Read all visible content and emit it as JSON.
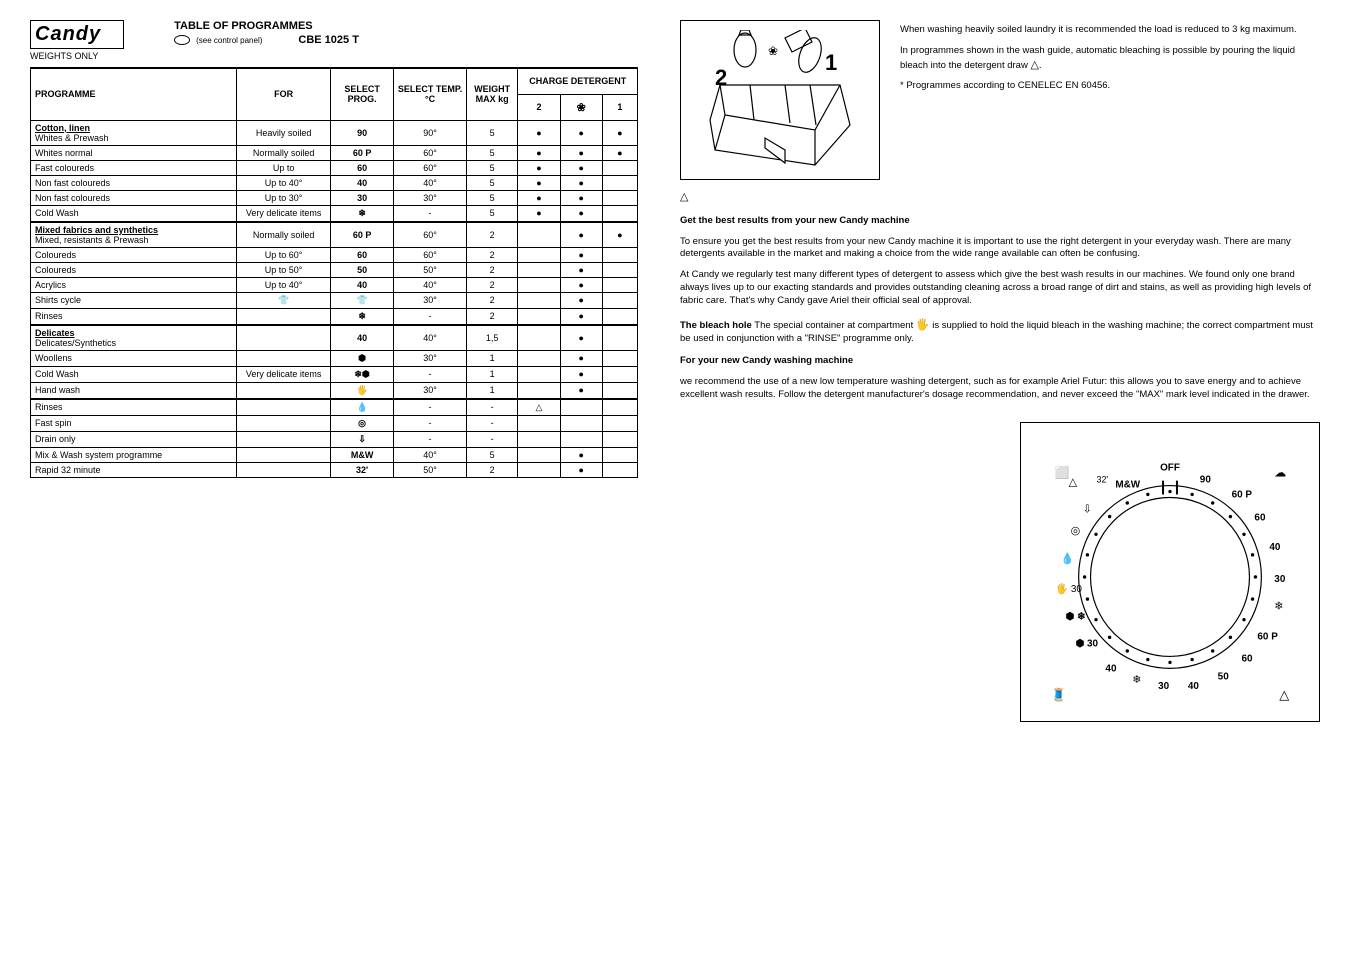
{
  "header": {
    "brand": "Candy",
    "weights_note": "WEIGHTS ONLY",
    "title": "TABLE OF PROGRAMMES",
    "subtitle": "CBE 1025 T",
    "circle_note": "(see control panel)"
  },
  "table": {
    "headers": {
      "programme": "PROGRAMME",
      "for": "FOR",
      "select_prog": "SELECT PROG.",
      "select_temp": "SELECT TEMP. °C",
      "weight_max": "WEIGHT MAX kg",
      "charge_detergent": "CHARGE DETERGENT",
      "flower_header": "❀"
    },
    "sections": [
      {
        "section": "Cotton, linen",
        "rows": [
          {
            "prog": "Whites & Prewash",
            "for": "Heavily soiled",
            "select": "90",
            "temp": "90°",
            "load": "5",
            "d1": "●",
            "d2": "●",
            "d3": "●"
          },
          {
            "prog": "Whites normal",
            "for": "Normally soiled",
            "select": "60 P",
            "temp": "60°",
            "load": "5",
            "d1": "●",
            "d2": "●",
            "d3": "●"
          },
          {
            "prog": "Fast coloureds",
            "for": "Up to",
            "select": "60",
            "temp": "60°",
            "load": "5",
            "d1": "●",
            "d2": "●",
            "d3": ""
          },
          {
            "prog": "Non fast coloureds",
            "for": "Up to 40°",
            "select": "40",
            "temp": "40°",
            "load": "5",
            "d1": "●",
            "d2": "●",
            "d3": ""
          },
          {
            "prog": "Non fast coloureds",
            "for": "Up to 30°",
            "select": "30",
            "temp": "30°",
            "load": "5",
            "d1": "●",
            "d2": "●",
            "d3": ""
          },
          {
            "prog": "Cold Wash",
            "for": "Very delicate items",
            "select": "❄",
            "temp": "-",
            "load": "5",
            "d1": "●",
            "d2": "●",
            "d3": ""
          }
        ]
      },
      {
        "section": "Mixed fabrics and synthetics",
        "rows": [
          {
            "prog": "Mixed, resistants & Prewash",
            "for": "Normally soiled",
            "select": "60 P",
            "temp": "60°",
            "load": "2",
            "d1": "",
            "d2": "●",
            "d3": "●"
          },
          {
            "prog": "Coloureds",
            "for": "Up to 60°",
            "select": "60",
            "temp": "60°",
            "load": "2",
            "d1": "",
            "d2": "●",
            "d3": ""
          },
          {
            "prog": "Coloureds",
            "for": "Up to 50°",
            "select": "50",
            "temp": "50°",
            "load": "2",
            "d1": "",
            "d2": "●",
            "d3": ""
          },
          {
            "prog": "Acrylics",
            "for": "Up to 40°",
            "select": "40",
            "temp": "40°",
            "load": "2",
            "d1": "",
            "d2": "●",
            "d3": ""
          },
          {
            "prog": "Shirts cycle",
            "for": "👕",
            "select": "👕",
            "temp": "30°",
            "load": "2",
            "d1": "",
            "d2": "●",
            "d3": ""
          },
          {
            "prog": "Rinses",
            "for": "",
            "select": "❄",
            "temp": "-",
            "load": "2",
            "d1": "",
            "d2": "●",
            "d3": ""
          }
        ]
      },
      {
        "section": "Delicates",
        "rows": [
          {
            "prog": "Delicates/Synthetics",
            "for": "",
            "select": "40",
            "temp": "40°",
            "load": "1,5",
            "d1": "",
            "d2": "●",
            "d3": ""
          },
          {
            "prog": "Woollens",
            "for": "",
            "select": "⬢",
            "temp": "30°",
            "load": "1",
            "d1": "",
            "d2": "●",
            "d3": ""
          },
          {
            "prog": "Cold Wash",
            "for": "Very delicate items",
            "select": "❄⬢",
            "temp": "-",
            "load": "1",
            "d1": "",
            "d2": "●",
            "d3": ""
          },
          {
            "prog": "Hand wash",
            "for": "",
            "select": "🖐",
            "temp": "30°",
            "load": "1",
            "d1": "",
            "d2": "●",
            "d3": ""
          }
        ]
      },
      {
        "section": "",
        "rows": [
          {
            "prog": "Rinses",
            "for": "",
            "select": "💧",
            "temp": "-",
            "load": "-",
            "d1": "△",
            "d2": "",
            "d3": ""
          },
          {
            "prog": "Fast spin",
            "for": "",
            "select": "◎",
            "temp": "-",
            "load": "-",
            "d1": "",
            "d2": "",
            "d3": ""
          },
          {
            "prog": "Drain only",
            "for": "",
            "select": "⇩",
            "temp": "-",
            "load": "-",
            "d1": "",
            "d2": "",
            "d3": ""
          },
          {
            "prog": "Mix & Wash system programme",
            "for": "",
            "select": "M&W",
            "temp": "40°",
            "load": "5",
            "d1": "",
            "d2": "●",
            "d3": ""
          },
          {
            "prog": "Rapid 32 minute",
            "for": "",
            "select": "32'",
            "temp": "50°",
            "load": "2",
            "d1": "",
            "d2": "●",
            "d3": ""
          }
        ]
      }
    ]
  },
  "right": {
    "drawer_label_1": "1",
    "drawer_label_2": "2",
    "p1": "When washing heavily soiled laundry it is recommended the load is reduced to 3 kg maximum.",
    "p2": "In programmes shown in the wash guide, automatic bleaching is possible by pouring the liquid bleach into the detergent draw ",
    "p2_icon": "△",
    "p3": "* Programmes according to CENELEC EN 60456.",
    "p4_head": "Get the best results from your new Candy machine",
    "p4": "To ensure you get the best results from your new Candy machine it is important to use the right detergent in your everyday wash. There are many detergents available in the market and making a choice from the wide range available can often be confusing.",
    "p5": "At Candy we regularly test many different types of detergent to assess which give the best wash results in our machines. We found only one brand always lives up to our exacting standards and provides outstanding cleaning across a broad range of dirt and stains, as well as providing high levels of fabric care. That's why Candy gave Ariel their official seal of approval.",
    "p6_head": "The bleach hole",
    "p6": "The special container at compartment ",
    "p6_icon": "🖐",
    "p6b": " is supplied to hold the liquid bleach in the washing machine; the correct compartment must be used in conjunction with a \"RINSE\" programme only.",
    "p7_head": "For your new Candy washing machine",
    "p7": "we recommend the use of a new low temperature washing detergent, such as for example Ariel Futur: this allows you to save energy and to achieve excellent wash results. Follow the detergent manufacturer's dosage recommendation, and never exceed the \"MAX\" mark level indicated in the drawer."
  },
  "dial": {
    "off": "OFF",
    "mw": "M&W",
    "labels_right": [
      "90",
      "60 P",
      "60",
      "40",
      "30",
      "❄",
      "60 P",
      "60",
      "50",
      "40",
      "30",
      "❄"
    ],
    "labels_left": [
      "32'",
      "◎",
      "🖐",
      "⬢30",
      "⬢30",
      "40"
    ],
    "rinse_icon": "💧",
    "t30_a": "30",
    "t30_b": "30"
  },
  "colors": {
    "text": "#000000",
    "background": "#ffffff",
    "border": "#000000"
  }
}
